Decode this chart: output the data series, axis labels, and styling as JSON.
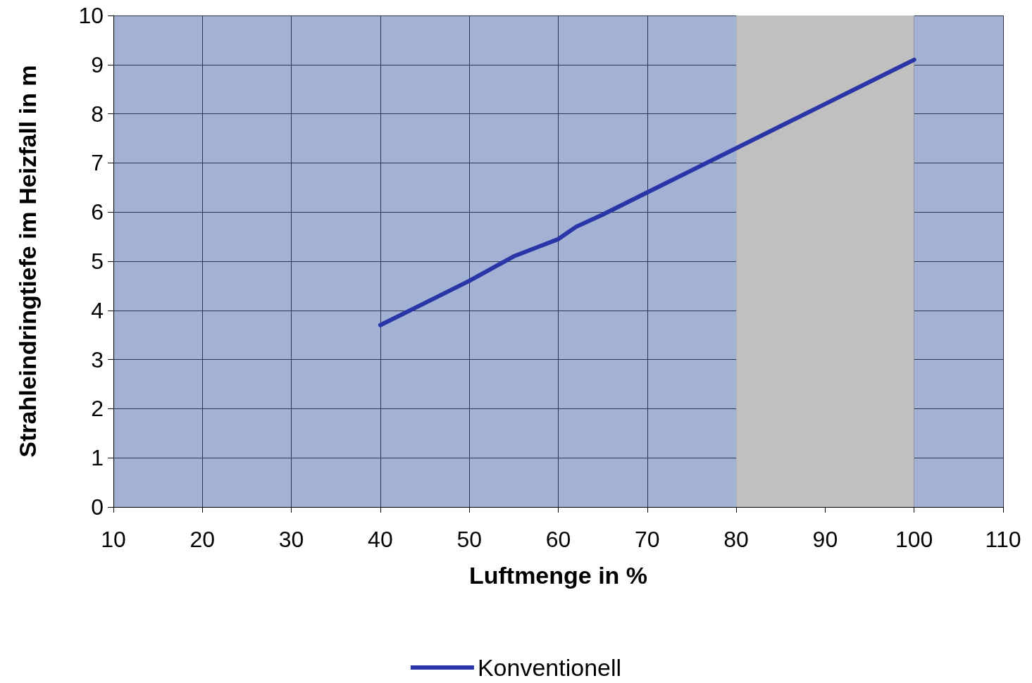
{
  "chart_data": {
    "type": "line",
    "xlabel": "Luftmenge in %",
    "ylabel": "Strahleindringtiefe im Heizfall in m",
    "x": [
      40,
      45,
      50,
      55,
      60,
      62,
      65,
      70,
      75,
      80,
      85,
      90,
      95,
      100
    ],
    "series": [
      {
        "name": "Konventionell",
        "color": "#2a36a8",
        "values": [
          3.7,
          4.15,
          4.6,
          5.1,
          5.45,
          5.7,
          5.95,
          6.4,
          6.85,
          7.3,
          7.75,
          8.2,
          8.65,
          9.1
        ]
      }
    ],
    "xlim": [
      10,
      110
    ],
    "xticks": [
      10,
      20,
      30,
      40,
      50,
      60,
      70,
      80,
      90,
      100,
      110
    ],
    "ylim": [
      0,
      10
    ],
    "yticks": [
      0,
      1,
      2,
      3,
      4,
      5,
      6,
      7,
      8,
      9,
      10
    ],
    "bands": [
      {
        "axis": "x",
        "from": 80,
        "to": 100,
        "color": "#c0c0c0"
      }
    ],
    "grid": true,
    "legend": "bottom",
    "marker": "none",
    "line_style": "solid"
  }
}
